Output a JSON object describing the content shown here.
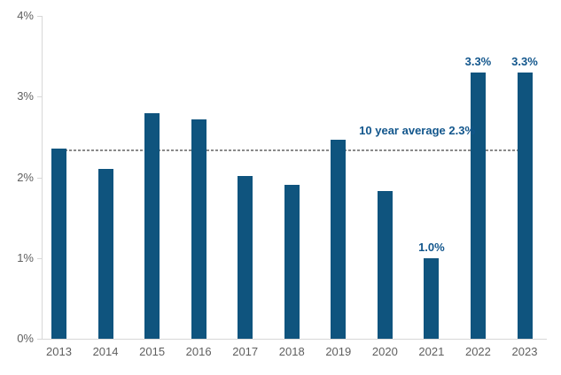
{
  "chart": {
    "background": "#ffffff",
    "colors": {
      "bar": "#0f547e",
      "data_label": "#12568c",
      "axis_text": "#5f5f5f",
      "axis_line": "#d7d7d7",
      "average_line": "#8a8a8a"
    }
  },
  "chart_data": {
    "type": "bar",
    "title": "",
    "xlabel": "",
    "ylabel": "",
    "categories": [
      "2013",
      "2014",
      "2015",
      "2016",
      "2017",
      "2018",
      "2019",
      "2020",
      "2021",
      "2022",
      "2023"
    ],
    "values": [
      2.36,
      2.1,
      2.8,
      2.72,
      2.02,
      1.91,
      2.47,
      1.83,
      1.0,
      3.3,
      3.3
    ],
    "bar_labels": [
      "",
      "",
      "",
      "",
      "",
      "",
      "",
      "",
      "1.0%",
      "3.3%",
      "3.3%"
    ],
    "ylim": [
      0,
      4
    ],
    "y_ticks": [
      {
        "value": 0,
        "label": "0%"
      },
      {
        "value": 1,
        "label": "1%"
      },
      {
        "value": 2,
        "label": "2%"
      },
      {
        "value": 3,
        "label": "3%"
      },
      {
        "value": 4,
        "label": "4%"
      }
    ],
    "grid": false,
    "legend": null,
    "average_line": {
      "value": 2.3,
      "label": "10 year average 2.3%",
      "style": "dashed"
    }
  }
}
